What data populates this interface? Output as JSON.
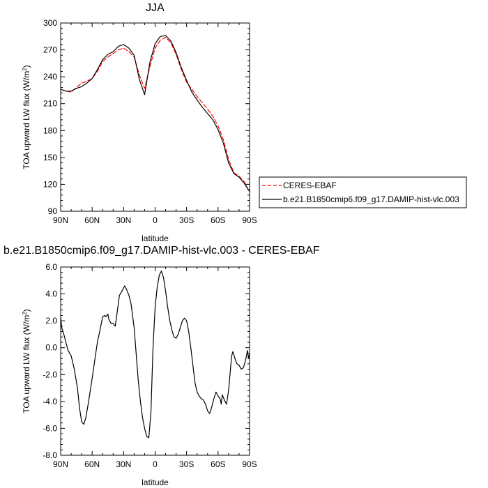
{
  "chart_data": [
    {
      "type": "line",
      "title": "JJA",
      "xlabel": "latitude",
      "ylabel": "TOA upward LW flux (W/m",
      "ylabel_sup": "2",
      "ylabel_close": ")",
      "xlim": [
        90,
        -90
      ],
      "ylim": [
        90,
        300
      ],
      "x_ticks": [
        90,
        60,
        30,
        0,
        -30,
        -60,
        -90
      ],
      "x_tick_labels": [
        "90N",
        "60N",
        "30N",
        "0",
        "30S",
        "60S",
        "90S"
      ],
      "y_ticks": [
        90,
        120,
        150,
        180,
        210,
        240,
        270,
        300
      ],
      "y_tick_labels": [
        "90",
        "120",
        "150",
        "180",
        "210",
        "240",
        "270",
        "300"
      ],
      "legend": {
        "placement": "right",
        "entries": [
          "CERES-EBAF",
          "b.e21.B1850cmip6.f09_g17.DAMIP-hist-vlc.003"
        ]
      },
      "series": [
        {
          "name": "CERES-EBAF",
          "color": "#ff0000",
          "dashed": true,
          "x": [
            90,
            85,
            80,
            75,
            70,
            65,
            60,
            55,
            50,
            45,
            40,
            35,
            30,
            25,
            20,
            15,
            10,
            5,
            0,
            -5,
            -10,
            -15,
            -20,
            -25,
            -30,
            -35,
            -40,
            -45,
            -50,
            -55,
            -60,
            -65,
            -70,
            -75,
            -80,
            -85,
            -90
          ],
          "y": [
            226,
            224,
            223,
            228,
            233,
            235,
            238,
            246,
            257,
            262,
            266,
            270,
            272,
            268,
            262,
            242,
            227,
            251,
            272,
            281,
            284,
            278,
            265,
            248,
            234,
            226,
            218,
            211,
            204,
            196,
            185,
            170,
            148,
            133,
            129,
            123,
            111
          ]
        },
        {
          "name": "b.e21.B1850cmip6.f09_g17.DAMIP-hist-vlc.003",
          "color": "#000000",
          "dashed": false,
          "x": [
            90,
            85,
            80,
            75,
            70,
            65,
            60,
            55,
            50,
            45,
            40,
            35,
            30,
            25,
            20,
            15,
            10,
            5,
            0,
            -5,
            -10,
            -15,
            -20,
            -25,
            -30,
            -35,
            -40,
            -45,
            -50,
            -55,
            -60,
            -65,
            -70,
            -75,
            -80,
            -85,
            -90
          ],
          "y": [
            226,
            224,
            224,
            227,
            229,
            233,
            238,
            248,
            259,
            265,
            268,
            274,
            276,
            272,
            264,
            237,
            220,
            256,
            277,
            285,
            286,
            280,
            267,
            250,
            236,
            223,
            214,
            206,
            199,
            192,
            181,
            166,
            144,
            132,
            128,
            121,
            112
          ]
        }
      ]
    },
    {
      "type": "line",
      "title": "b.e21.B1850cmip6.f09_g17.DAMIP-hist-vlc.003 - CERES-EBAF",
      "xlabel": "latitude",
      "ylabel": "TOA upward LW flux (W/m",
      "ylabel_sup": "2",
      "ylabel_close": ")",
      "xlim": [
        90,
        -90
      ],
      "ylim": [
        -8,
        6
      ],
      "x_ticks": [
        90,
        60,
        30,
        0,
        -30,
        -60,
        -90
      ],
      "x_tick_labels": [
        "90N",
        "60N",
        "30N",
        "0",
        "30S",
        "60S",
        "90S"
      ],
      "y_ticks": [
        -8,
        -6,
        -4,
        -2,
        0,
        2,
        4,
        6
      ],
      "y_tick_labels": [
        "-8.0",
        "-6.0",
        "-4.0",
        "-2.0",
        "0.0",
        "2.0",
        "4.0",
        "6.0"
      ],
      "series": [
        {
          "color": "#000000",
          "dashed": false,
          "x": [
            90,
            89,
            87,
            85,
            83,
            80,
            77,
            74,
            72,
            70,
            68,
            66,
            64,
            62,
            60,
            58,
            55,
            52,
            50,
            48,
            47,
            45,
            44,
            42,
            40,
            38,
            36,
            34,
            33,
            31,
            29,
            27,
            25,
            23,
            20,
            18,
            16,
            14,
            12,
            10,
            8,
            6,
            4,
            2,
            0,
            -2,
            -4,
            -6,
            -8,
            -10,
            -12,
            -14,
            -16,
            -18,
            -20,
            -22,
            -24,
            -26,
            -28,
            -30,
            -32,
            -34,
            -36,
            -38,
            -40,
            -42,
            -44,
            -46,
            -48,
            -50,
            -52,
            -54,
            -56,
            -58,
            -60,
            -62,
            -63,
            -64,
            -66,
            -68,
            -70,
            -71,
            -72,
            -73,
            -74,
            -75,
            -76,
            -78,
            -80,
            -82,
            -84,
            -86,
            -88,
            -89,
            -90
          ],
          "y": [
            2.3,
            1.5,
            1.0,
            0.4,
            -0.2,
            -0.6,
            -1.6,
            -3.0,
            -4.5,
            -5.5,
            -5.7,
            -5.2,
            -4.3,
            -3.3,
            -2.3,
            -1.2,
            0.4,
            1.5,
            2.3,
            2.4,
            2.3,
            2.5,
            2.1,
            1.8,
            1.8,
            1.6,
            2.7,
            3.9,
            4.0,
            4.3,
            4.6,
            4.3,
            3.9,
            3.3,
            1.5,
            -0.5,
            -2.5,
            -4.0,
            -5.2,
            -6.0,
            -6.6,
            -6.7,
            -4.8,
            0.0,
            3.0,
            4.5,
            5.4,
            5.7,
            5.2,
            4.2,
            3.0,
            2.0,
            1.3,
            0.8,
            0.7,
            1.0,
            1.5,
            2.0,
            2.2,
            2.0,
            1.2,
            0.0,
            -1.3,
            -2.6,
            -3.3,
            -3.6,
            -3.8,
            -3.9,
            -4.2,
            -4.7,
            -4.9,
            -4.4,
            -3.8,
            -3.3,
            -3.6,
            -3.8,
            -4.2,
            -3.5,
            -3.9,
            -4.2,
            -3.2,
            -2.3,
            -1.4,
            -0.6,
            -0.3,
            -0.5,
            -0.8,
            -1.2,
            -1.3,
            -1.6,
            -1.5,
            -1.0,
            -0.2,
            -0.8,
            -0.4
          ]
        }
      ]
    }
  ]
}
